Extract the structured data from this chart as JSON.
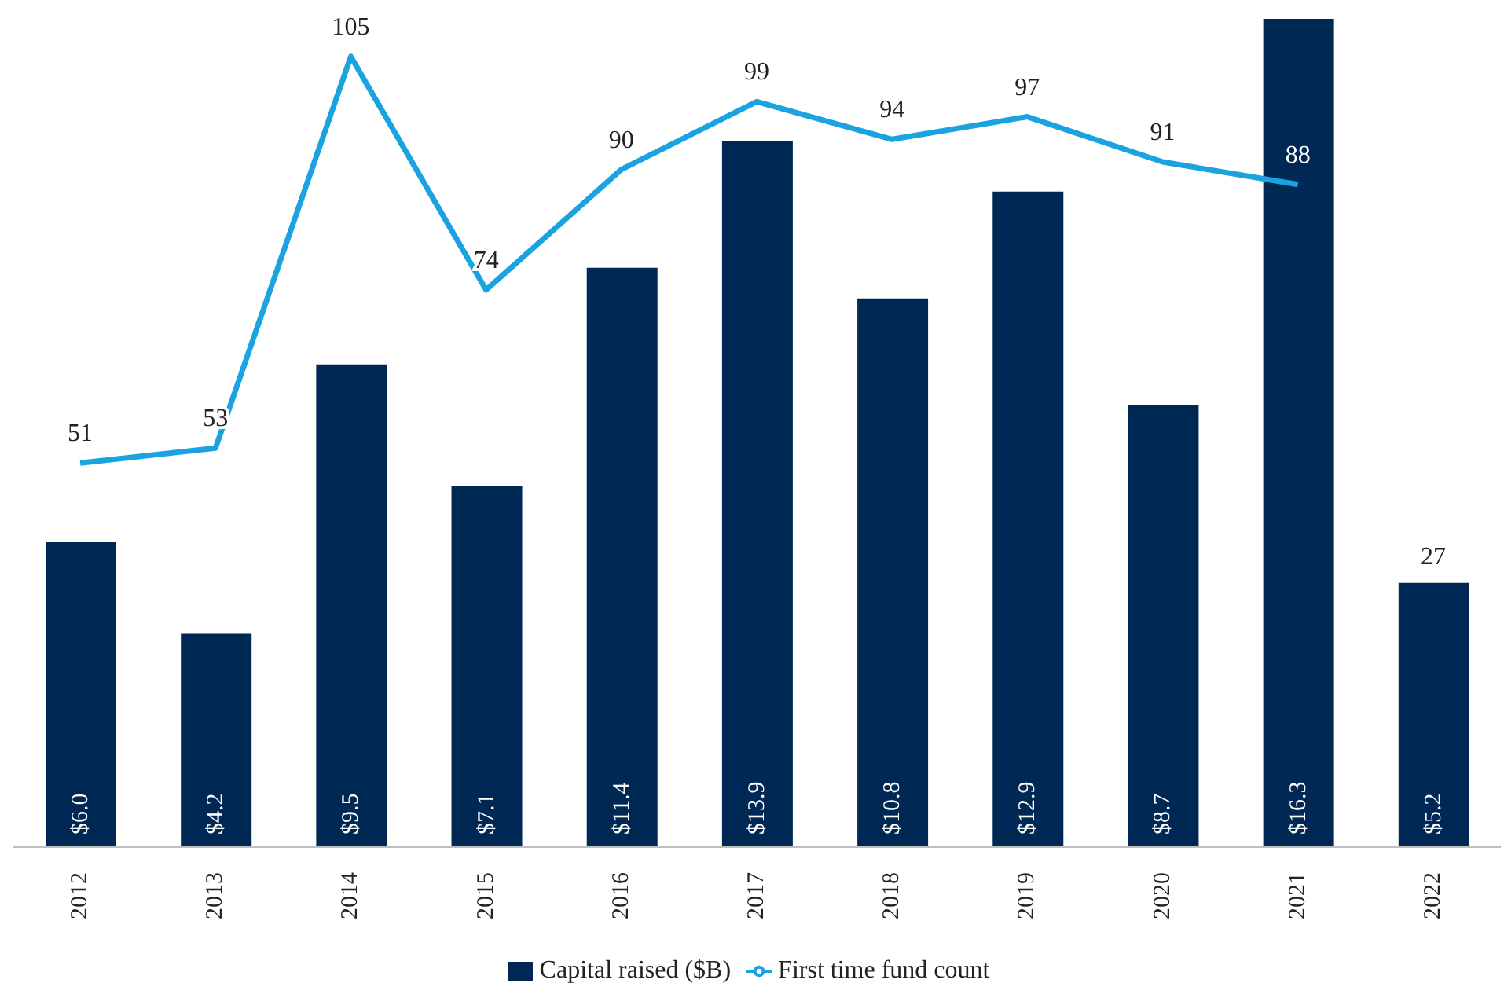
{
  "chart_data": {
    "type": "bar",
    "categories": [
      "2012",
      "2013",
      "2014",
      "2015",
      "2016",
      "2017",
      "2018",
      "2019",
      "2020",
      "2021",
      "2022"
    ],
    "series": [
      {
        "name": "Capital raised ($B)",
        "color": "#002855",
        "values": [
          6.0,
          4.2,
          9.5,
          7.1,
          11.4,
          13.9,
          10.8,
          12.9,
          8.7,
          16.3,
          5.2
        ],
        "value_labels": [
          "$6.0",
          "$4.2",
          "$9.5",
          "$7.1",
          "$11.4",
          "$13.9",
          "$10.8",
          "$12.9",
          "$8.7",
          "$16.3",
          "$5.2"
        ]
      },
      {
        "name": "First time fund count",
        "type": "line",
        "axis": "y2",
        "color": "#1aa3e0",
        "values": [
          51,
          53,
          105,
          74,
          90,
          99,
          94,
          97,
          91,
          88,
          null
        ],
        "value_labels": [
          "51",
          "53",
          "105",
          "74",
          "90",
          "99",
          "94",
          "97",
          "91",
          "88",
          null
        ]
      }
    ],
    "ylim": [
      0,
      16.3
    ],
    "y2lim": [
      0,
      110
    ],
    "annotations": [
      "27"
    ],
    "legend": "bottom",
    "marker": "none",
    "line_style": "solid"
  }
}
